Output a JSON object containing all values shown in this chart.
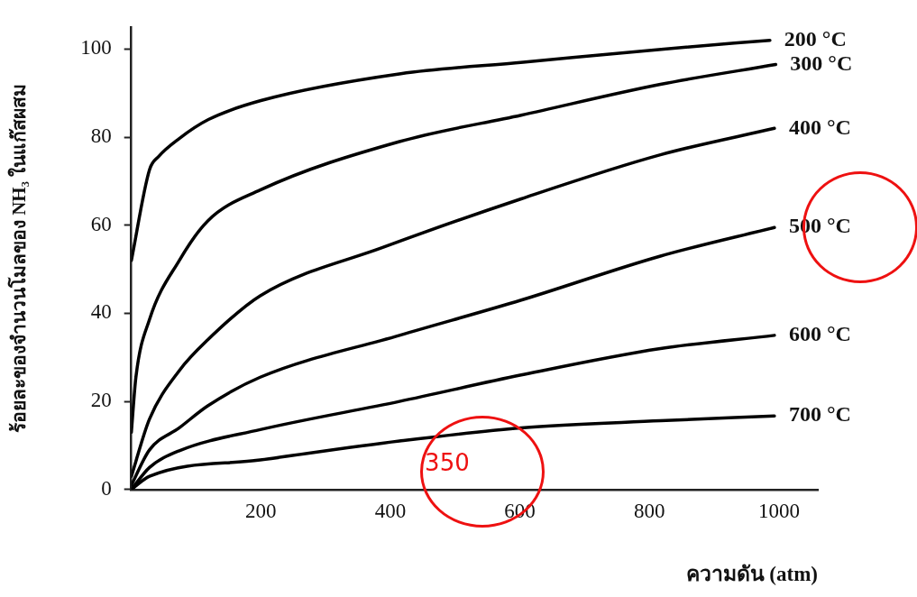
{
  "chart_data": {
    "type": "line",
    "xlabel": "ความดัน (atm)",
    "ylabel": "ร้อยละของจำนวนโมลของ NH₃ ในแก๊สผสม",
    "xlim": [
      0,
      1060
    ],
    "ylim": [
      0,
      105
    ],
    "xticks": [
      200,
      400,
      600,
      800,
      1000
    ],
    "yticks": [
      0,
      20,
      40,
      60,
      80,
      100
    ],
    "grid": false,
    "legend": false,
    "marker": "none",
    "line_style": "solid",
    "annotations": [
      "350"
    ],
    "series": [
      {
        "name": "200 °C",
        "color": "#000000",
        "x": [
          0,
          28,
          42,
          74,
          119,
          200,
          416,
          605,
          822,
          986
        ],
        "values": [
          52,
          72.6,
          75.6,
          79.7,
          84,
          88.3,
          94.4,
          97,
          100,
          102
        ]
      },
      {
        "name": "300 °C",
        "color": "#000000",
        "x": [
          0,
          7,
          28,
          74,
          118,
          199,
          414,
          602,
          817,
          995
        ],
        "values": [
          13,
          25.5,
          38.6,
          52,
          61,
          68,
          79,
          85,
          92,
          96.5
        ]
      },
      {
        "name": "400 °C",
        "color": "#000000",
        "x": [
          0,
          28,
          74,
          118,
          199,
          389,
          602,
          817,
          993
        ],
        "values": [
          3,
          16,
          27,
          34,
          44,
          55,
          66,
          76,
          82
        ]
      },
      {
        "name": "500 °C",
        "color": "#000000",
        "x": [
          0,
          28,
          74,
          118,
          199,
          414,
          602,
          817,
          993
        ],
        "values": [
          1,
          9,
          14,
          19,
          25.5,
          35,
          43,
          53,
          59.5
        ]
      },
      {
        "name": "600 °C",
        "color": "#000000",
        "x": [
          0,
          28,
          74,
          199,
          414,
          602,
          817,
          993
        ],
        "values": [
          0,
          5,
          8.8,
          13.6,
          20,
          26,
          32,
          35
        ]
      },
      {
        "name": "700 °C",
        "color": "#000000",
        "x": [
          0,
          28,
          199,
          414,
          602,
          817,
          993
        ],
        "values": [
          0,
          3,
          6.7,
          11,
          14,
          15.6,
          16.7
        ]
      }
    ]
  }
}
